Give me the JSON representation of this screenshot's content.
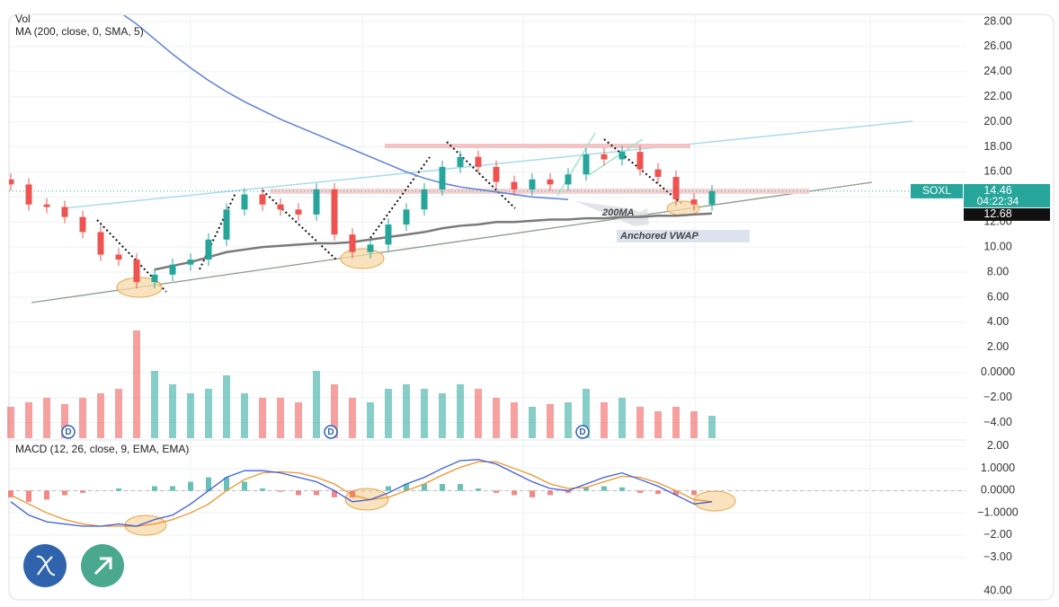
{
  "chart_data": {
    "type": "candlestick",
    "indicator_labels": {
      "volume": "Vol",
      "ma": "MA (200, close, 0, SMA, 5)",
      "macd": "MACD (12, 26, close, 9, EMA, EMA)"
    },
    "symbol": "SOXL",
    "countdown": "04:22:34",
    "annotations": [
      "200MA",
      "Anchored VWAP"
    ],
    "event_markers": [
      "D",
      "D",
      "D"
    ],
    "up_color": "#26a69a",
    "down_color": "#ef5350",
    "open": [
      15.4,
      15.0,
      13.4,
      13.2,
      12.4,
      11.2,
      9.4,
      9.0,
      7.2,
      7.8,
      8.6,
      9.0,
      10.6,
      13.0,
      14.2,
      13.4,
      13.0,
      12.6,
      14.6,
      11.0,
      9.6,
      10.2,
      11.8,
      13.0,
      14.6,
      16.4,
      17.2,
      16.4,
      15.2,
      14.6,
      15.4,
      15.0,
      15.8,
      17.4,
      17.0,
      17.6,
      16.2,
      15.6,
      13.8,
      13.4
    ],
    "high": [
      15.9,
      15.5,
      13.9,
      13.7,
      12.9,
      11.7,
      9.9,
      9.5,
      8.3,
      9.1,
      9.5,
      11.1,
      13.5,
      14.7,
      14.7,
      13.9,
      13.5,
      15.1,
      15.1,
      11.5,
      10.7,
      12.3,
      13.5,
      15.1,
      16.9,
      17.7,
      17.7,
      16.9,
      15.7,
      15.9,
      15.9,
      16.3,
      17.9,
      17.9,
      18.1,
      18.1,
      16.7,
      16.1,
      14.3,
      14.96
    ],
    "low": [
      14.5,
      12.9,
      12.7,
      11.9,
      10.7,
      8.9,
      8.5,
      6.7,
      6.7,
      7.3,
      8.1,
      8.5,
      10.1,
      12.5,
      12.9,
      12.5,
      12.1,
      12.1,
      10.5,
      9.1,
      9.1,
      9.7,
      11.3,
      12.5,
      14.1,
      15.9,
      15.9,
      14.7,
      14.1,
      14.1,
      14.5,
      14.5,
      15.3,
      16.5,
      16.5,
      15.7,
      15.1,
      13.3,
      12.9,
      12.9
    ],
    "close": [
      15.0,
      13.4,
      13.2,
      12.4,
      11.2,
      9.4,
      9.0,
      7.2,
      7.8,
      8.6,
      9.0,
      10.6,
      13.0,
      14.2,
      13.4,
      13.0,
      12.6,
      14.6,
      11.0,
      9.6,
      10.2,
      11.8,
      13.0,
      14.6,
      16.4,
      17.2,
      16.4,
      15.2,
      14.6,
      15.4,
      15.0,
      15.8,
      17.4,
      17.0,
      17.6,
      16.2,
      15.6,
      13.8,
      13.4,
      14.46
    ],
    "ma200": {
      "color": "#5b7fdb",
      "values": [
        null,
        null,
        null,
        null,
        null,
        null,
        28.8,
        27.8,
        26.6,
        25.4,
        24.3,
        23.3,
        22.4,
        21.6,
        20.9,
        20.2,
        19.6,
        19.0,
        18.4,
        17.8,
        17.2,
        16.6,
        16.0,
        15.5,
        15.1,
        14.8,
        14.6,
        14.4,
        14.2,
        14.0,
        13.9,
        13.8,
        null,
        null,
        null,
        null,
        null,
        null,
        null,
        null
      ]
    },
    "vwap": {
      "color": "#7a7a7a",
      "values": [
        null,
        null,
        null,
        null,
        null,
        null,
        null,
        null,
        8.2,
        8.5,
        8.8,
        9.2,
        9.6,
        9.8,
        10.0,
        10.1,
        10.2,
        10.3,
        10.3,
        10.4,
        10.6,
        10.8,
        11.0,
        11.2,
        11.5,
        11.7,
        11.8,
        12.0,
        12.0,
        12.1,
        12.2,
        12.2,
        12.3,
        12.3,
        12.4,
        12.4,
        12.5,
        12.5,
        12.6,
        12.68
      ]
    },
    "volume": {
      "ylim": [
        0,
        130
      ],
      "values": [
        35,
        40,
        45,
        38,
        45,
        50,
        55,
        120,
        75,
        60,
        50,
        55,
        70,
        50,
        45,
        45,
        40,
        75,
        60,
        45,
        40,
        55,
        60,
        55,
        50,
        60,
        55,
        45,
        40,
        35,
        38,
        40,
        55,
        40,
        45,
        35,
        30,
        35,
        30,
        25
      ]
    },
    "ylim": [
      -4,
      28
    ],
    "yticks": [
      {
        "value": 28,
        "label": "28.00"
      },
      {
        "value": 26,
        "label": "26.00"
      },
      {
        "value": 24,
        "label": "24.00"
      },
      {
        "value": 22,
        "label": "22.00"
      },
      {
        "value": 20,
        "label": "20.00"
      },
      {
        "value": 18,
        "label": "18.00"
      },
      {
        "value": 16,
        "label": "16.00"
      },
      {
        "value": 14,
        "label": "14.00"
      },
      {
        "value": 12,
        "label": "12.00"
      },
      {
        "value": 10,
        "label": "10.00"
      },
      {
        "value": 8,
        "label": "8.00"
      },
      {
        "value": 6,
        "label": "6.00"
      },
      {
        "value": 4,
        "label": "4.00"
      },
      {
        "value": 2,
        "label": "2.00"
      },
      {
        "value": 0,
        "label": "0.0000"
      },
      {
        "value": -2,
        "label": "−2.00"
      },
      {
        "value": -4,
        "label": "−4.00"
      }
    ],
    "grid": true,
    "macd": {
      "ylim": [
        -3.7,
        2.2
      ],
      "yticks": [
        {
          "value": 2,
          "label": "2.00"
        },
        {
          "value": 1,
          "label": "1.0000"
        },
        {
          "value": 0,
          "label": "0.0000"
        },
        {
          "value": -1,
          "label": "−1.0000"
        },
        {
          "value": -2,
          "label": "−2.00"
        },
        {
          "value": -3,
          "label": "−3.00"
        }
      ],
      "macd": {
        "color": "#3d5fd9",
        "values": [
          -0.5,
          -1.1,
          -1.4,
          -1.5,
          -1.6,
          -1.6,
          -1.5,
          -1.6,
          -1.3,
          -1.1,
          -0.6,
          0.0,
          0.6,
          0.9,
          0.9,
          0.8,
          0.6,
          0.4,
          0.0,
          -0.5,
          -0.4,
          -0.1,
          0.3,
          0.6,
          1.0,
          1.35,
          1.4,
          1.2,
          0.8,
          0.4,
          0.1,
          0.0,
          0.3,
          0.6,
          0.8,
          0.5,
          0.2,
          -0.2,
          -0.6,
          -0.5
        ]
      },
      "signal": {
        "color": "#f0932b",
        "values": [
          -0.2,
          -0.6,
          -1.0,
          -1.3,
          -1.5,
          -1.6,
          -1.6,
          -1.6,
          -1.5,
          -1.3,
          -1.0,
          -0.6,
          0.0,
          0.5,
          0.8,
          0.85,
          0.8,
          0.6,
          0.3,
          -0.2,
          -0.4,
          -0.3,
          0.0,
          0.3,
          0.7,
          1.05,
          1.3,
          1.3,
          1.0,
          0.7,
          0.3,
          0.1,
          0.15,
          0.4,
          0.65,
          0.6,
          0.35,
          0.0,
          -0.4,
          -0.5
        ]
      },
      "histogram": [
        -0.3,
        -0.5,
        -0.4,
        -0.2,
        -0.1,
        0,
        0.1,
        0,
        0.2,
        0.2,
        0.4,
        0.6,
        0.6,
        0.4,
        0.1,
        -0.05,
        -0.2,
        -0.2,
        -0.3,
        -0.3,
        0,
        0.2,
        0.3,
        0.3,
        0.3,
        0.3,
        0.1,
        -0.1,
        -0.2,
        -0.3,
        -0.2,
        -0.1,
        0.15,
        0.2,
        0.15,
        -0.1,
        -0.15,
        -0.2,
        -0.2,
        0
      ]
    },
    "extra_scale_label": "40.00"
  }
}
